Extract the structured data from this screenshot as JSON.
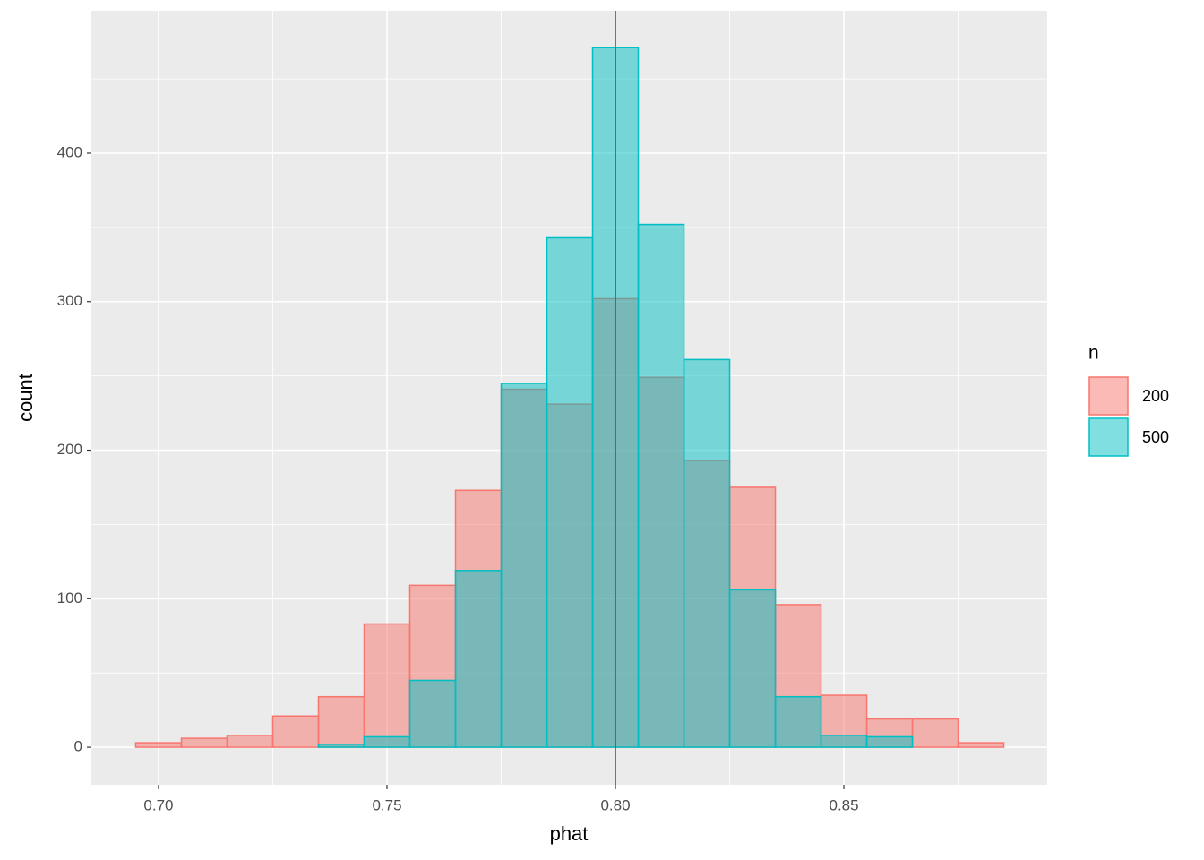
{
  "chart_data": {
    "type": "histogram",
    "x_label": "phat",
    "y_label": "count",
    "bins": [
      0.695,
      0.705,
      0.715,
      0.725,
      0.735,
      0.745,
      0.755,
      0.765,
      0.775,
      0.785,
      0.795,
      0.805,
      0.815,
      0.825,
      0.835,
      0.845,
      0.855,
      0.865,
      0.875,
      0.885
    ],
    "series": [
      {
        "name": "200",
        "color": "#F8766D",
        "values": [
          3,
          6,
          8,
          21,
          34,
          83,
          109,
          173,
          241,
          231,
          302,
          249,
          193,
          175,
          96,
          35,
          19,
          19,
          3
        ]
      },
      {
        "name": "500",
        "color": "#00BFC4",
        "values": [
          0,
          0,
          0,
          0,
          2,
          7,
          45,
          119,
          245,
          343,
          471,
          352,
          261,
          106,
          34,
          8,
          7,
          0,
          0
        ]
      }
    ],
    "legend_title": "n",
    "legend_position": "right",
    "vline": {
      "value": 0.8,
      "color": "#e41a1c"
    },
    "xlim": [
      0.6853,
      0.8945
    ],
    "ylim": [
      -25.3,
      495.9
    ],
    "xticks": [
      {
        "value": 0.7,
        "label": "0.70"
      },
      {
        "value": 0.75,
        "label": "0.75"
      },
      {
        "value": 0.8,
        "label": "0.80"
      },
      {
        "value": 0.85,
        "label": "0.85"
      }
    ],
    "yticks": [
      0,
      100,
      200,
      300,
      400
    ],
    "grid": true
  }
}
